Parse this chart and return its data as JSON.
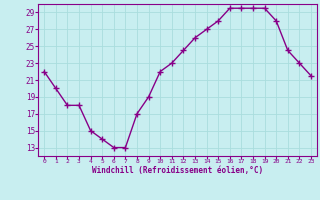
{
  "x": [
    0,
    1,
    2,
    3,
    4,
    5,
    6,
    7,
    8,
    9,
    10,
    11,
    12,
    13,
    14,
    15,
    16,
    17,
    18,
    19,
    20,
    21,
    22,
    23
  ],
  "y": [
    22,
    20,
    18,
    18,
    15,
    14,
    13,
    13,
    17,
    19,
    22,
    23,
    24.5,
    26,
    27,
    28,
    29.5,
    29.5,
    29.5,
    29.5,
    28,
    24.5,
    23,
    21.5
  ],
  "line_color": "#880088",
  "marker": "+",
  "marker_size": 4,
  "bg_color": "#c8eef0",
  "grid_color": "#aadddd",
  "xlabel": "Windchill (Refroidissement éolien,°C)",
  "xlabel_color": "#880088",
  "tick_color": "#880088",
  "ylim": [
    12,
    30
  ],
  "yticks": [
    13,
    15,
    17,
    19,
    21,
    23,
    25,
    27,
    29
  ],
  "xticks": [
    0,
    1,
    2,
    3,
    4,
    5,
    6,
    7,
    8,
    9,
    10,
    11,
    12,
    13,
    14,
    15,
    16,
    17,
    18,
    19,
    20,
    21,
    22,
    23
  ],
  "line_width": 1.0,
  "spine_color": "#880088"
}
